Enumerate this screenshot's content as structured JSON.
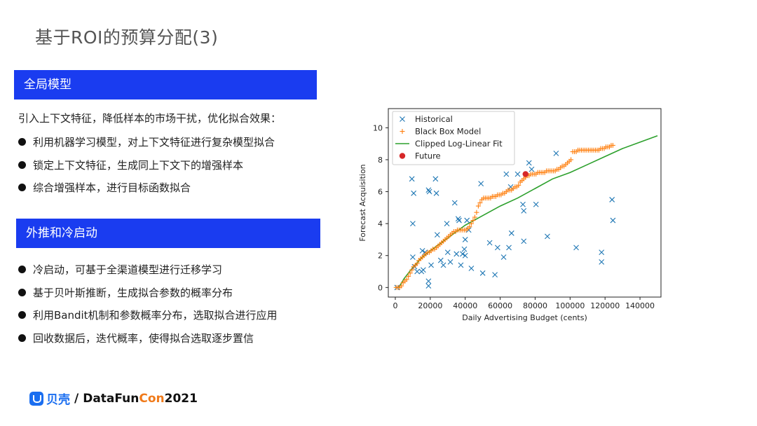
{
  "slide": {
    "title": "基于ROI的预算分配(3)"
  },
  "section_a": {
    "header": "全局模型",
    "intro": "引入上下文特征，降低样本的市场干扰，优化拟合效果：",
    "bullets": [
      "利用机器学习模型，对上下文特征进行复杂模型拟合",
      "锁定上下文特征，生成同上下文下的增强样本",
      "综合增强样本，进行目标函数拟合"
    ]
  },
  "section_b": {
    "header": "外推和冷启动",
    "bullets": [
      "冷启动，可基于全渠道模型进行迁移学习",
      "基于贝叶斯推断，生成拟合参数的概率分布",
      "利用Bandit机制和参数概率分布，选取拟合进行应用",
      "回收数据后，迭代概率，使得拟合选取逐步置信"
    ]
  },
  "footer": {
    "brand_cn": "贝壳",
    "sep": "/",
    "brand_a": "DataFun",
    "brand_b": "Con",
    "brand_year": " 2021"
  },
  "colors": {
    "section_bar": "#1a3cf0",
    "historical": "#1f77b4",
    "blackbox": "#ff7f0e",
    "fit": "#2ca02c",
    "future": "#d62728"
  },
  "chart_data": {
    "type": "scatter",
    "xlabel": "Daily Advertising Budget (cents)",
    "ylabel": "Forecast Acquisition",
    "xlim": [
      -4000,
      152000
    ],
    "ylim": [
      -0.6,
      11.2
    ],
    "xticks": [
      0,
      20000,
      40000,
      60000,
      80000,
      100000,
      120000,
      140000
    ],
    "yticks": [
      0,
      2,
      4,
      6,
      8,
      10
    ],
    "legend_position": "top-left",
    "grid": false,
    "series": [
      {
        "name": "Historical",
        "marker": "x",
        "points": [
          [
            1000,
            0.0
          ],
          [
            9500,
            6.8
          ],
          [
            10000,
            4.0
          ],
          [
            10500,
            5.9
          ],
          [
            10000,
            1.9
          ],
          [
            11000,
            1.3
          ],
          [
            12500,
            1.0
          ],
          [
            15000,
            1.0
          ],
          [
            15500,
            2.3
          ],
          [
            16000,
            1.1
          ],
          [
            17000,
            2.2
          ],
          [
            19000,
            6.1
          ],
          [
            19500,
            6.0
          ],
          [
            19000,
            0.4
          ],
          [
            19000,
            0.1
          ],
          [
            20500,
            1.4
          ],
          [
            23000,
            6.8
          ],
          [
            23500,
            5.9
          ],
          [
            24000,
            3.3
          ],
          [
            26000,
            1.7
          ],
          [
            27500,
            1.4
          ],
          [
            29500,
            4.0
          ],
          [
            30000,
            2.2
          ],
          [
            31500,
            1.6
          ],
          [
            34000,
            5.3
          ],
          [
            35000,
            2.1
          ],
          [
            36000,
            4.3
          ],
          [
            36500,
            4.2
          ],
          [
            37500,
            1.4
          ],
          [
            38500,
            2.1
          ],
          [
            39500,
            2.4
          ],
          [
            40000,
            2.0
          ],
          [
            40000,
            3.0
          ],
          [
            41000,
            4.2
          ],
          [
            42000,
            3.6
          ],
          [
            43500,
            1.2
          ],
          [
            49000,
            6.5
          ],
          [
            50000,
            0.9
          ],
          [
            54000,
            2.8
          ],
          [
            57000,
            0.8
          ],
          [
            58500,
            2.5
          ],
          [
            62000,
            1.9
          ],
          [
            63500,
            7.1
          ],
          [
            65000,
            2.5
          ],
          [
            66000,
            6.3
          ],
          [
            66500,
            3.4
          ],
          [
            70000,
            7.1
          ],
          [
            73000,
            5.2
          ],
          [
            73500,
            4.8
          ],
          [
            73500,
            2.9
          ],
          [
            76500,
            7.8
          ],
          [
            78000,
            7.4
          ],
          [
            80500,
            5.2
          ],
          [
            87000,
            3.2
          ],
          [
            92000,
            8.4
          ],
          [
            103500,
            2.5
          ],
          [
            118000,
            2.2
          ],
          [
            118000,
            1.6
          ],
          [
            124000,
            5.5
          ],
          [
            124500,
            4.2
          ]
        ]
      },
      {
        "name": "Black Box Model",
        "marker": "+",
        "points": [
          [
            500,
            0.0
          ],
          [
            1500,
            0.0
          ],
          [
            2500,
            0.0
          ],
          [
            3500,
            0.1
          ],
          [
            4500,
            0.3
          ],
          [
            5500,
            0.4
          ],
          [
            6500,
            0.5
          ],
          [
            7500,
            0.7
          ],
          [
            8500,
            0.9
          ],
          [
            9500,
            1.1
          ],
          [
            10500,
            1.3
          ],
          [
            11500,
            1.4
          ],
          [
            12500,
            1.5
          ],
          [
            13500,
            1.7
          ],
          [
            14500,
            1.8
          ],
          [
            15500,
            1.9
          ],
          [
            16500,
            2.0
          ],
          [
            17500,
            2.1
          ],
          [
            18500,
            2.2
          ],
          [
            19500,
            2.2
          ],
          [
            20500,
            2.3
          ],
          [
            21500,
            2.4
          ],
          [
            22500,
            2.4
          ],
          [
            23500,
            2.5
          ],
          [
            24500,
            2.6
          ],
          [
            25500,
            2.7
          ],
          [
            26500,
            2.8
          ],
          [
            27500,
            2.9
          ],
          [
            28500,
            3.0
          ],
          [
            29500,
            3.1
          ],
          [
            30500,
            3.2
          ],
          [
            31500,
            3.3
          ],
          [
            32500,
            3.4
          ],
          [
            33500,
            3.5
          ],
          [
            34500,
            3.5
          ],
          [
            35500,
            3.6
          ],
          [
            36500,
            3.6
          ],
          [
            37500,
            3.6
          ],
          [
            38500,
            3.6
          ],
          [
            39500,
            3.6
          ],
          [
            40500,
            3.6
          ],
          [
            41500,
            3.7
          ],
          [
            42500,
            3.8
          ],
          [
            43500,
            4.0
          ],
          [
            44500,
            4.2
          ],
          [
            45500,
            4.4
          ],
          [
            46500,
            4.7
          ],
          [
            47500,
            5.1
          ],
          [
            48500,
            5.3
          ],
          [
            49500,
            5.5
          ],
          [
            50500,
            5.6
          ],
          [
            51500,
            5.6
          ],
          [
            52500,
            5.6
          ],
          [
            53500,
            5.6
          ],
          [
            54500,
            5.6
          ],
          [
            55500,
            5.7
          ],
          [
            56500,
            5.7
          ],
          [
            57500,
            5.7
          ],
          [
            58500,
            5.8
          ],
          [
            59500,
            5.8
          ],
          [
            60500,
            5.8
          ],
          [
            61500,
            5.9
          ],
          [
            62500,
            5.9
          ],
          [
            63500,
            6.0
          ],
          [
            64500,
            6.1
          ],
          [
            65500,
            6.1
          ],
          [
            66500,
            6.1
          ],
          [
            67500,
            6.2
          ],
          [
            68500,
            6.3
          ],
          [
            69500,
            6.3
          ],
          [
            70500,
            6.4
          ],
          [
            71500,
            6.6
          ],
          [
            72500,
            6.7
          ],
          [
            73500,
            6.8
          ],
          [
            74500,
            6.9
          ],
          [
            75500,
            7.0
          ],
          [
            76500,
            7.0
          ],
          [
            77500,
            7.1
          ],
          [
            78500,
            7.1
          ],
          [
            79500,
            7.1
          ],
          [
            80500,
            7.1
          ],
          [
            81500,
            7.2
          ],
          [
            82500,
            7.2
          ],
          [
            83500,
            7.2
          ],
          [
            84500,
            7.2
          ],
          [
            85500,
            7.2
          ],
          [
            86500,
            7.3
          ],
          [
            87500,
            7.3
          ],
          [
            88500,
            7.3
          ],
          [
            89500,
            7.3
          ],
          [
            90500,
            7.3
          ],
          [
            91500,
            7.3
          ],
          [
            92500,
            7.4
          ],
          [
            93500,
            7.4
          ],
          [
            94500,
            7.5
          ],
          [
            95500,
            7.6
          ],
          [
            96500,
            7.6
          ],
          [
            97500,
            7.7
          ],
          [
            98500,
            7.8
          ],
          [
            99500,
            7.9
          ],
          [
            100500,
            8.0
          ],
          [
            101500,
            8.5
          ],
          [
            102500,
            8.5
          ],
          [
            103500,
            8.5
          ],
          [
            104500,
            8.6
          ],
          [
            105500,
            8.6
          ],
          [
            106500,
            8.6
          ],
          [
            107500,
            8.6
          ],
          [
            108500,
            8.6
          ],
          [
            109500,
            8.6
          ],
          [
            110500,
            8.6
          ],
          [
            111500,
            8.6
          ],
          [
            112500,
            8.6
          ],
          [
            113500,
            8.6
          ],
          [
            114500,
            8.6
          ],
          [
            115500,
            8.6
          ],
          [
            116500,
            8.6
          ],
          [
            117500,
            8.7
          ],
          [
            118500,
            8.7
          ],
          [
            119500,
            8.7
          ],
          [
            120500,
            8.8
          ],
          [
            121500,
            8.8
          ],
          [
            122500,
            8.8
          ],
          [
            123500,
            8.9
          ],
          [
            124500,
            8.9
          ]
        ]
      },
      {
        "name": "Clipped Log-Linear Fit",
        "style": "line",
        "points": [
          [
            0,
            0.0
          ],
          [
            2000,
            0.0
          ],
          [
            5000,
            0.55
          ],
          [
            10000,
            1.25
          ],
          [
            15000,
            1.85
          ],
          [
            20000,
            2.3
          ],
          [
            25000,
            2.7
          ],
          [
            30000,
            3.1
          ],
          [
            40000,
            3.9
          ],
          [
            50000,
            4.5
          ],
          [
            60000,
            5.1
          ],
          [
            70000,
            5.6
          ],
          [
            80000,
            6.2
          ],
          [
            90000,
            6.8
          ],
          [
            100000,
            7.2
          ],
          [
            110000,
            7.7
          ],
          [
            120000,
            8.2
          ],
          [
            130000,
            8.7
          ],
          [
            140000,
            9.1
          ],
          [
            150000,
            9.5
          ]
        ]
      },
      {
        "name": "Future",
        "marker": "o",
        "points": [
          [
            74500,
            7.1
          ]
        ]
      }
    ]
  }
}
